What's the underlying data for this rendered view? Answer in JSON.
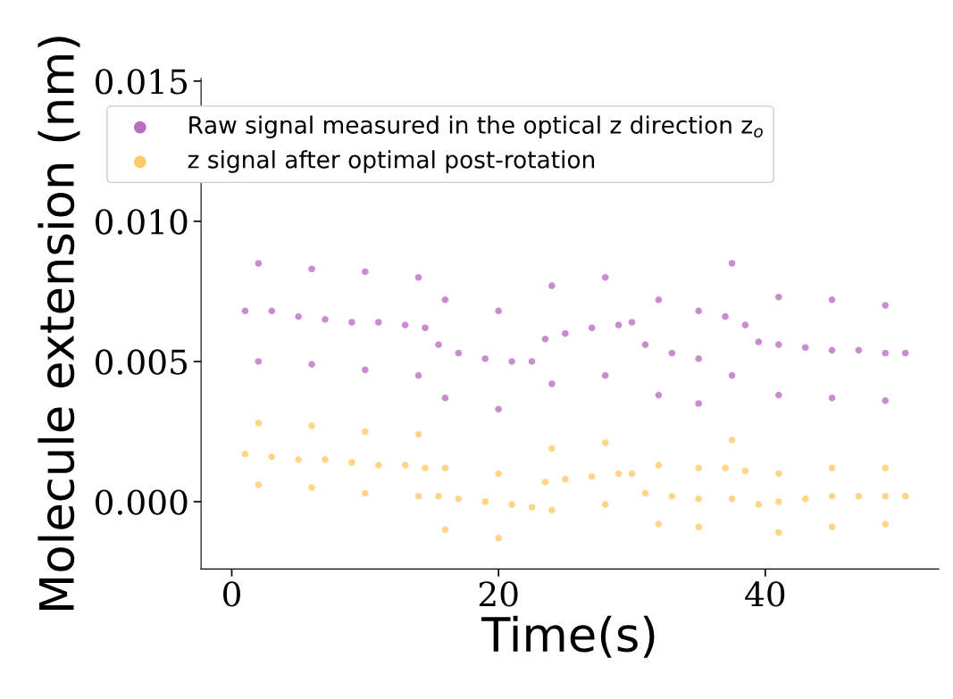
{
  "chart_data": {
    "type": "scatter",
    "xlabel": "Time(s)",
    "ylabel": "Molecule extension (nm)",
    "xlim": [
      -2.3,
      53
    ],
    "ylim": [
      -0.0024,
      0.0151
    ],
    "xticks": [
      0,
      20,
      40
    ],
    "yticks": [
      {
        "value": 0,
        "label": "0.000"
      },
      {
        "value": 0.005,
        "label": "0.005"
      },
      {
        "value": 0.01,
        "label": "0.010"
      },
      {
        "value": 0.015,
        "label": "0.015"
      }
    ],
    "legend": "top left",
    "grid": false,
    "marker": "circle",
    "series": [
      {
        "name": "Raw signal measured in the optical z direction z$_{o}$",
        "color": "#9b30a8",
        "x": [
          1,
          3,
          5,
          7,
          9,
          11,
          13,
          14.5,
          2,
          6,
          10,
          14,
          2,
          6,
          10,
          14,
          15.5,
          17,
          19,
          21,
          22.5,
          16,
          20,
          16,
          20,
          23.5,
          25,
          27,
          29,
          30,
          24,
          28,
          24,
          28,
          31,
          33,
          35,
          32,
          35,
          32,
          35,
          37,
          38.5,
          37.5,
          37.5,
          39.5,
          41,
          43,
          45,
          47,
          49,
          50.5,
          41,
          45,
          49,
          41,
          45,
          49
        ],
        "values": [
          0.0068,
          0.0068,
          0.0066,
          0.0065,
          0.0064,
          0.0064,
          0.0063,
          0.0062,
          0.0085,
          0.0083,
          0.0082,
          0.008,
          0.005,
          0.0049,
          0.0047,
          0.0045,
          0.0056,
          0.0053,
          0.0051,
          0.005,
          0.005,
          0.0072,
          0.0068,
          0.0037,
          0.0033,
          0.0058,
          0.006,
          0.0062,
          0.0063,
          0.0064,
          0.0077,
          0.008,
          0.0042,
          0.0045,
          0.0056,
          0.0053,
          0.0051,
          0.0072,
          0.0068,
          0.0038,
          0.0035,
          0.0066,
          0.0063,
          0.0085,
          0.0045,
          0.0057,
          0.0056,
          0.0055,
          0.0054,
          0.0054,
          0.0053,
          0.0053,
          0.0073,
          0.0072,
          0.007,
          0.0038,
          0.0037,
          0.0036
        ]
      },
      {
        "name": "z signal after optimal post-rotation",
        "color": "#ffb224",
        "x": [
          1,
          3,
          5,
          7,
          9,
          11,
          13,
          14.5,
          2,
          6,
          10,
          14,
          2,
          6,
          10,
          14,
          15.5,
          17,
          19,
          21,
          22.5,
          16,
          20,
          16,
          20,
          23.5,
          25,
          27,
          29,
          30,
          24,
          28,
          24,
          28,
          31,
          33,
          35,
          32,
          35,
          32,
          35,
          37,
          38.5,
          37.5,
          37.5,
          39.5,
          41,
          43,
          45,
          47,
          49,
          50.5,
          41,
          45,
          49,
          41,
          45,
          49
        ],
        "values": [
          0.0017,
          0.0016,
          0.0015,
          0.0015,
          0.0014,
          0.0013,
          0.0013,
          0.0012,
          0.0028,
          0.0027,
          0.0025,
          0.0024,
          0.0006,
          0.0005,
          0.0003,
          0.0002,
          0.0002,
          0.0001,
          0.0,
          -0.0001,
          -0.0002,
          0.0012,
          0.001,
          -0.001,
          -0.0013,
          0.0007,
          0.0008,
          0.0009,
          0.001,
          0.001,
          0.0019,
          0.0021,
          -0.0003,
          -0.0001,
          0.0003,
          0.0002,
          0.0001,
          0.0013,
          0.0012,
          -0.0008,
          -0.0009,
          0.0012,
          0.0011,
          0.0022,
          0.0001,
          -0.0001,
          0.0,
          0.0001,
          0.0002,
          0.0002,
          0.0002,
          0.0002,
          0.001,
          0.0012,
          0.0012,
          -0.0011,
          -0.0009,
          -0.0008
        ]
      }
    ]
  }
}
